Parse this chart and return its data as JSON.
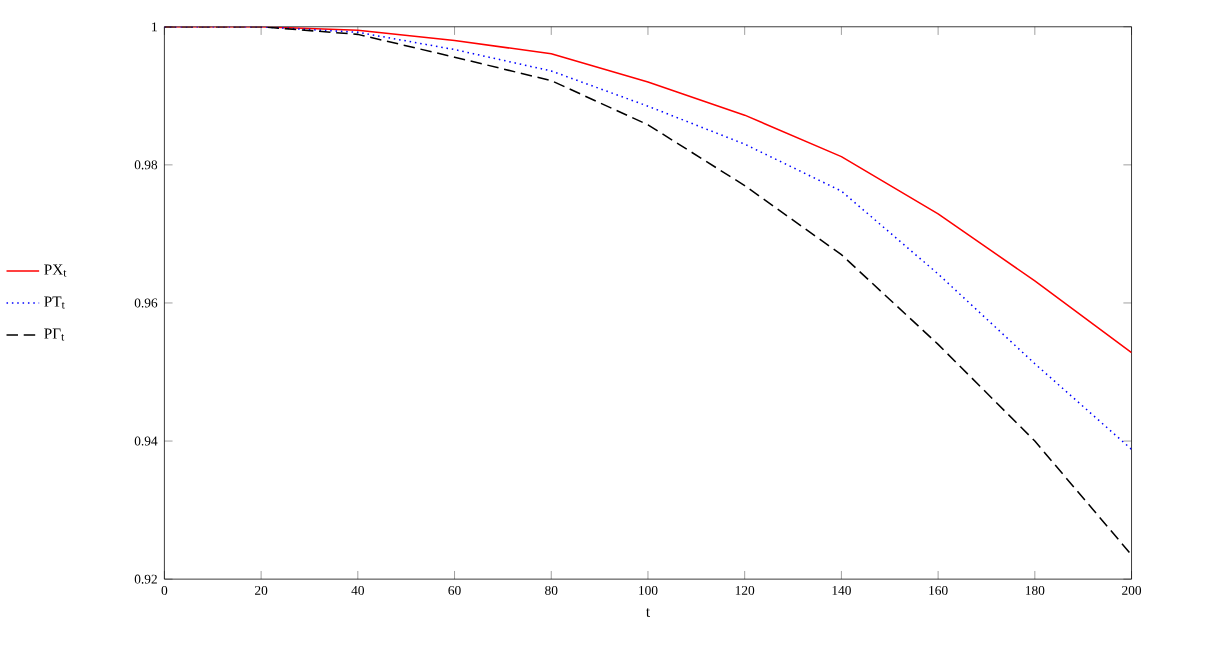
{
  "chart_data": {
    "type": "line",
    "xlabel": "t",
    "x": [
      0,
      20,
      40,
      60,
      80,
      100,
      120,
      140,
      160,
      180,
      200
    ],
    "series": [
      {
        "name": "PX$_{t}$",
        "color": "#ff0000",
        "line_style": "solid",
        "values": [
          1,
          1,
          0.9995,
          0.998,
          0.9961,
          0.992,
          0.9872,
          0.9812,
          0.9729,
          0.9632,
          0.9528
        ]
      },
      {
        "name": "PT$_{t}$",
        "color": "#0000ff",
        "line_style": "dotted",
        "values": [
          1,
          1,
          0.9992,
          0.9967,
          0.9936,
          0.9885,
          0.983,
          0.9762,
          0.9642,
          0.9512,
          0.9388
        ]
      },
      {
        "name": "PΓ$_{t}$",
        "color": "#000000",
        "line_style": "dashed",
        "values": [
          1,
          1,
          0.9989,
          0.9956,
          0.9922,
          0.9858,
          0.977,
          0.967,
          0.954,
          0.94,
          0.9235
        ]
      }
    ],
    "xlim": [
      0,
      200
    ],
    "ylim": [
      0.92,
      1
    ],
    "xticks": [
      0,
      20,
      40,
      60,
      80,
      100,
      120,
      140,
      160,
      180,
      200
    ],
    "yticks": [
      0.92,
      0.94,
      0.96,
      0.98,
      1
    ],
    "grid": false,
    "legend": "left",
    "marker": "none"
  }
}
